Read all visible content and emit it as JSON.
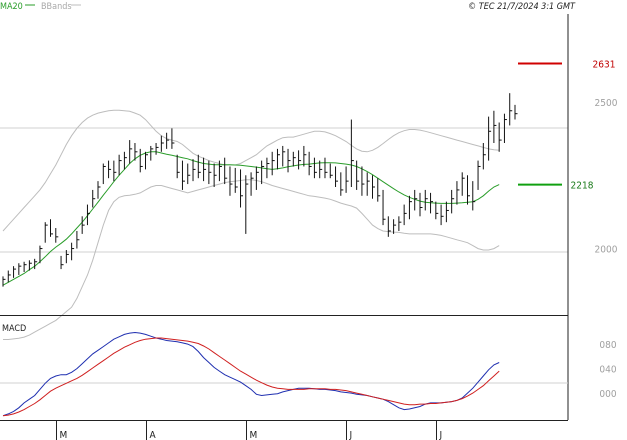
{
  "header": {
    "legend_ma": "MA20",
    "legend_bb": "BBands",
    "copyright": "© TEC 21/7/2024 3:1 GMT"
  },
  "colors": {
    "price_bars": "#111111",
    "ma20": "#2a9d2a",
    "bbands": "#bdbdbd",
    "macd_line": "#1f2fb0",
    "signal_line": "#d02020",
    "resistance": "#d00000",
    "support": "#10a010",
    "grid": "#d0d0d0",
    "frame": "#222222"
  },
  "chart_data": [
    {
      "type": "ohlc",
      "title": "",
      "x_ticks": [
        "M",
        "A",
        "M",
        "J",
        "J"
      ],
      "y_ticks": [
        2000,
        2500
      ],
      "ylim": [
        1770,
        2800
      ],
      "bars": [
        {
          "h": 1905,
          "l": 1870,
          "c": 1895
        },
        {
          "h": 1925,
          "l": 1885,
          "c": 1910
        },
        {
          "h": 1940,
          "l": 1900,
          "c": 1930
        },
        {
          "h": 1950,
          "l": 1910,
          "c": 1940
        },
        {
          "h": 1955,
          "l": 1920,
          "c": 1945
        },
        {
          "h": 1960,
          "l": 1925,
          "c": 1950
        },
        {
          "h": 1965,
          "l": 1930,
          "c": 1955
        },
        {
          "h": 2010,
          "l": 1950,
          "c": 2000
        },
        {
          "h": 2090,
          "l": 2020,
          "c": 2080
        },
        {
          "h": 2100,
          "l": 2040,
          "c": 2050
        },
        {
          "h": 2070,
          "l": 2020,
          "c": 2040
        },
        {
          "h": 1975,
          "l": 1930,
          "c": 1945
        },
        {
          "h": 1995,
          "l": 1950,
          "c": 1980
        },
        {
          "h": 2020,
          "l": 1960,
          "c": 2000
        },
        {
          "h": 2060,
          "l": 2000,
          "c": 2030
        },
        {
          "h": 2110,
          "l": 2050,
          "c": 2080
        },
        {
          "h": 2150,
          "l": 2080,
          "c": 2120
        },
        {
          "h": 2200,
          "l": 2140,
          "c": 2170
        },
        {
          "h": 2230,
          "l": 2170,
          "c": 2210
        },
        {
          "h": 2290,
          "l": 2220,
          "c": 2280
        },
        {
          "h": 2300,
          "l": 2240,
          "c": 2270
        },
        {
          "h": 2300,
          "l": 2230,
          "c": 2260
        },
        {
          "h": 2320,
          "l": 2250,
          "c": 2300
        },
        {
          "h": 2330,
          "l": 2270,
          "c": 2310
        },
        {
          "h": 2370,
          "l": 2290,
          "c": 2340
        },
        {
          "h": 2360,
          "l": 2300,
          "c": 2330
        },
        {
          "h": 2340,
          "l": 2260,
          "c": 2280
        },
        {
          "h": 2330,
          "l": 2270,
          "c": 2320
        },
        {
          "h": 2350,
          "l": 2300,
          "c": 2340
        },
        {
          "h": 2360,
          "l": 2320,
          "c": 2345
        },
        {
          "h": 2385,
          "l": 2330,
          "c": 2360
        },
        {
          "h": 2395,
          "l": 2340,
          "c": 2370
        },
        {
          "h": 2410,
          "l": 2340,
          "c": 2360
        },
        {
          "h": 2320,
          "l": 2240,
          "c": 2260
        },
        {
          "h": 2300,
          "l": 2200,
          "c": 2230
        },
        {
          "h": 2290,
          "l": 2220,
          "c": 2250
        },
        {
          "h": 2305,
          "l": 2230,
          "c": 2270
        },
        {
          "h": 2320,
          "l": 2240,
          "c": 2260
        },
        {
          "h": 2310,
          "l": 2230,
          "c": 2270
        },
        {
          "h": 2300,
          "l": 2220,
          "c": 2260
        },
        {
          "h": 2290,
          "l": 2210,
          "c": 2250
        },
        {
          "h": 2300,
          "l": 2230,
          "c": 2280
        },
        {
          "h": 2310,
          "l": 2220,
          "c": 2240
        },
        {
          "h": 2280,
          "l": 2180,
          "c": 2220
        },
        {
          "h": 2275,
          "l": 2190,
          "c": 2210
        },
        {
          "h": 2270,
          "l": 2140,
          "c": 2180
        },
        {
          "h": 2250,
          "l": 2050,
          "c": 2220
        },
        {
          "h": 2260,
          "l": 2180,
          "c": 2240
        },
        {
          "h": 2280,
          "l": 2200,
          "c": 2260
        },
        {
          "h": 2300,
          "l": 2220,
          "c": 2280
        },
        {
          "h": 2310,
          "l": 2240,
          "c": 2290
        },
        {
          "h": 2330,
          "l": 2250,
          "c": 2300
        },
        {
          "h": 2340,
          "l": 2270,
          "c": 2320
        },
        {
          "h": 2350,
          "l": 2280,
          "c": 2330
        },
        {
          "h": 2340,
          "l": 2260,
          "c": 2300
        },
        {
          "h": 2330,
          "l": 2280,
          "c": 2310
        },
        {
          "h": 2335,
          "l": 2270,
          "c": 2300
        },
        {
          "h": 2350,
          "l": 2280,
          "c": 2320
        },
        {
          "h": 2330,
          "l": 2250,
          "c": 2280
        },
        {
          "h": 2310,
          "l": 2240,
          "c": 2260
        },
        {
          "h": 2300,
          "l": 2240,
          "c": 2270
        },
        {
          "h": 2310,
          "l": 2240,
          "c": 2260
        },
        {
          "h": 2290,
          "l": 2240,
          "c": 2250
        },
        {
          "h": 2280,
          "l": 2210,
          "c": 2230
        },
        {
          "h": 2260,
          "l": 2180,
          "c": 2200
        },
        {
          "h": 2280,
          "l": 2190,
          "c": 2230
        },
        {
          "h": 2440,
          "l": 2210,
          "c": 2300
        },
        {
          "h": 2300,
          "l": 2200,
          "c": 2230
        },
        {
          "h": 2280,
          "l": 2180,
          "c": 2220
        },
        {
          "h": 2260,
          "l": 2180,
          "c": 2230
        },
        {
          "h": 2250,
          "l": 2170,
          "c": 2210
        },
        {
          "h": 2240,
          "l": 2160,
          "c": 2180
        },
        {
          "h": 2200,
          "l": 2080,
          "c": 2100
        },
        {
          "h": 2110,
          "l": 2040,
          "c": 2060
        },
        {
          "h": 2100,
          "l": 2050,
          "c": 2080
        },
        {
          "h": 2110,
          "l": 2060,
          "c": 2090
        },
        {
          "h": 2150,
          "l": 2080,
          "c": 2120
        },
        {
          "h": 2180,
          "l": 2100,
          "c": 2160
        },
        {
          "h": 2200,
          "l": 2130,
          "c": 2170
        },
        {
          "h": 2190,
          "l": 2110,
          "c": 2140
        },
        {
          "h": 2200,
          "l": 2130,
          "c": 2170
        },
        {
          "h": 2190,
          "l": 2120,
          "c": 2160
        },
        {
          "h": 2160,
          "l": 2100,
          "c": 2120
        },
        {
          "h": 2150,
          "l": 2080,
          "c": 2110
        },
        {
          "h": 2160,
          "l": 2090,
          "c": 2130
        },
        {
          "h": 2200,
          "l": 2120,
          "c": 2170
        },
        {
          "h": 2230,
          "l": 2150,
          "c": 2200
        },
        {
          "h": 2260,
          "l": 2180,
          "c": 2240
        },
        {
          "h": 2250,
          "l": 2150,
          "c": 2180
        },
        {
          "h": 2230,
          "l": 2130,
          "c": 2160
        },
        {
          "h": 2300,
          "l": 2200,
          "c": 2280
        },
        {
          "h": 2360,
          "l": 2270,
          "c": 2320
        },
        {
          "h": 2450,
          "l": 2300,
          "c": 2400
        },
        {
          "h": 2470,
          "l": 2360,
          "c": 2420
        },
        {
          "h": 2430,
          "l": 2330,
          "c": 2370
        },
        {
          "h": 2460,
          "l": 2360,
          "c": 2440
        },
        {
          "h": 2530,
          "l": 2420,
          "c": 2470
        },
        {
          "h": 2490,
          "l": 2440,
          "c": 2460
        }
      ],
      "ma20": [
        1875,
        1885,
        1895,
        1905,
        1915,
        1928,
        1940,
        1955,
        1972,
        1990,
        2005,
        2018,
        2032,
        2050,
        2070,
        2090,
        2112,
        2135,
        2158,
        2182,
        2205,
        2228,
        2250,
        2270,
        2290,
        2306,
        2318,
        2326,
        2330,
        2330,
        2326,
        2322,
        2318,
        2314,
        2310,
        2306,
        2300,
        2295,
        2290,
        2288,
        2286,
        2286,
        2286,
        2286,
        2285,
        2284,
        2282,
        2280,
        2278,
        2275,
        2272,
        2270,
        2272,
        2275,
        2279,
        2282,
        2285,
        2287,
        2288,
        2290,
        2292,
        2293,
        2293,
        2292,
        2290,
        2288,
        2285,
        2280,
        2272,
        2263,
        2252,
        2240,
        2228,
        2216,
        2204,
        2193,
        2183,
        2175,
        2168,
        2162,
        2158,
        2156,
        2155,
        2154,
        2154,
        2154,
        2155,
        2156,
        2158,
        2160,
        2168,
        2180,
        2196,
        2210,
        2218
      ],
      "bb_upper": [
        2060,
        2080,
        2100,
        2120,
        2140,
        2160,
        2180,
        2200,
        2225,
        2255,
        2285,
        2320,
        2355,
        2385,
        2410,
        2430,
        2445,
        2455,
        2462,
        2466,
        2470,
        2472,
        2472,
        2470,
        2468,
        2462,
        2455,
        2440,
        2420,
        2400,
        2385,
        2375,
        2370,
        2365,
        2355,
        2340,
        2325,
        2315,
        2308,
        2300,
        2295,
        2290,
        2285,
        2285,
        2285,
        2290,
        2300,
        2310,
        2320,
        2335,
        2350,
        2360,
        2370,
        2378,
        2380,
        2380,
        2385,
        2390,
        2395,
        2400,
        2400,
        2398,
        2392,
        2385,
        2375,
        2365,
        2352,
        2340,
        2332,
        2330,
        2335,
        2345,
        2358,
        2372,
        2385,
        2395,
        2402,
        2406,
        2406,
        2404,
        2400,
        2395,
        2390,
        2385,
        2380,
        2375,
        2370,
        2365,
        2360,
        2355,
        2350,
        2345,
        2340,
        2337,
        2335
      ],
      "bb_lower": [
        1690,
        1690,
        1692,
        1694,
        1698,
        1705,
        1715,
        1725,
        1735,
        1745,
        1755,
        1770,
        1785,
        1800,
        1830,
        1870,
        1910,
        1960,
        2020,
        2080,
        2130,
        2160,
        2175,
        2180,
        2182,
        2185,
        2190,
        2200,
        2210,
        2215,
        2215,
        2210,
        2205,
        2200,
        2195,
        2190,
        2195,
        2200,
        2205,
        2210,
        2215,
        2220,
        2225,
        2228,
        2230,
        2232,
        2235,
        2235,
        2232,
        2228,
        2222,
        2215,
        2210,
        2205,
        2200,
        2195,
        2190,
        2185,
        2180,
        2178,
        2175,
        2172,
        2168,
        2162,
        2155,
        2150,
        2145,
        2138,
        2120,
        2100,
        2080,
        2068,
        2060,
        2058,
        2056,
        2055,
        2052,
        2050,
        2050,
        2050,
        2050,
        2050,
        2048,
        2045,
        2040,
        2035,
        2030,
        2025,
        2020,
        2010,
        2000,
        1995,
        1995,
        2000,
        2010
      ],
      "resistance": 2631,
      "support": 2218
    },
    {
      "type": "line",
      "title": "MACD",
      "y_ticks": [
        "080",
        "040",
        "000"
      ],
      "ylim": [
        -44,
        126
      ],
      "series": [
        {
          "values": [
            -37,
            -34,
            -30,
            -24,
            -16,
            -10,
            -4,
            6,
            16,
            24,
            28,
            30,
            30,
            34,
            40,
            48,
            56,
            64,
            70,
            76,
            82,
            88,
            92,
            96,
            98,
            99,
            98,
            96,
            93,
            90,
            88,
            86,
            85,
            84,
            82,
            80,
            76,
            68,
            58,
            50,
            42,
            36,
            30,
            26,
            22,
            18,
            12,
            6,
            -2,
            -4,
            -3,
            -2,
            -1,
            2,
            4,
            6,
            8,
            8,
            8,
            7,
            6,
            6,
            5,
            4,
            2,
            1,
            0,
            -2,
            -3,
            -4,
            -6,
            -8,
            -10,
            -14,
            -19,
            -24,
            -27,
            -26,
            -24,
            -22,
            -18,
            -16,
            -16,
            -16,
            -15,
            -14,
            -12,
            -8,
            0,
            8,
            18,
            28,
            38,
            46,
            50
          ]
        },
        {
          "values": [
            -37,
            -36,
            -34,
            -31,
            -27,
            -22,
            -17,
            -11,
            -4,
            3,
            8,
            12,
            16,
            20,
            24,
            29,
            35,
            41,
            47,
            53,
            59,
            65,
            70,
            75,
            79,
            83,
            86,
            88,
            89,
            90,
            90,
            89,
            88,
            87,
            86,
            85,
            83,
            81,
            77,
            72,
            66,
            60,
            54,
            48,
            42,
            36,
            31,
            26,
            21,
            17,
            13,
            10,
            8,
            7,
            6,
            6,
            6,
            6,
            7,
            7,
            7,
            7,
            6,
            6,
            5,
            4,
            2,
            0,
            -2,
            -4,
            -6,
            -8,
            -10,
            -12,
            -14,
            -16,
            -18,
            -19,
            -19,
            -18,
            -18,
            -17,
            -17,
            -16,
            -15,
            -14,
            -12,
            -9,
            -5,
            0,
            6,
            12,
            20,
            28,
            36
          ]
        }
      ]
    }
  ]
}
